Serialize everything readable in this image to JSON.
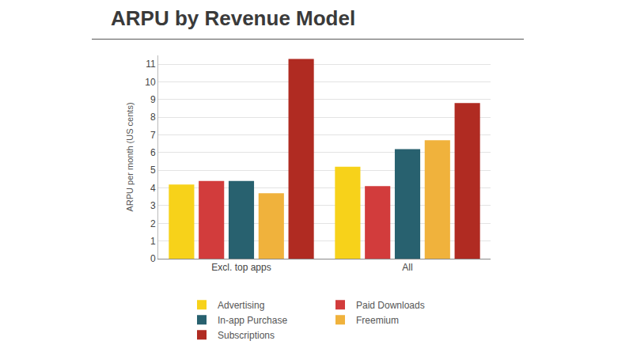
{
  "chart_data": {
    "type": "bar",
    "title": "ARPU by Revenue Model",
    "y_label": "ARPU per month (US cents)",
    "categories": [
      "Excl. top apps",
      "All"
    ],
    "series": [
      {
        "name": "Advertising",
        "color": "#f7d21a",
        "values": [
          4.2,
          5.2
        ]
      },
      {
        "name": "Paid Downloads",
        "color": "#d23c3c",
        "values": [
          4.4,
          4.1
        ]
      },
      {
        "name": "In-app Purchase",
        "color": "#28616f",
        "values": [
          4.4,
          6.2
        ]
      },
      {
        "name": "Freemium",
        "color": "#f0b23c",
        "values": [
          3.7,
          6.7
        ]
      },
      {
        "name": "Subscriptions",
        "color": "#b02b22",
        "values": [
          11.3,
          8.8
        ]
      }
    ],
    "ylim": [
      0,
      11.5
    ],
    "yticks": [
      0,
      1,
      2,
      3,
      4,
      5,
      6,
      7,
      8,
      9,
      10,
      11
    ],
    "grid": true,
    "legend": "bottom"
  }
}
